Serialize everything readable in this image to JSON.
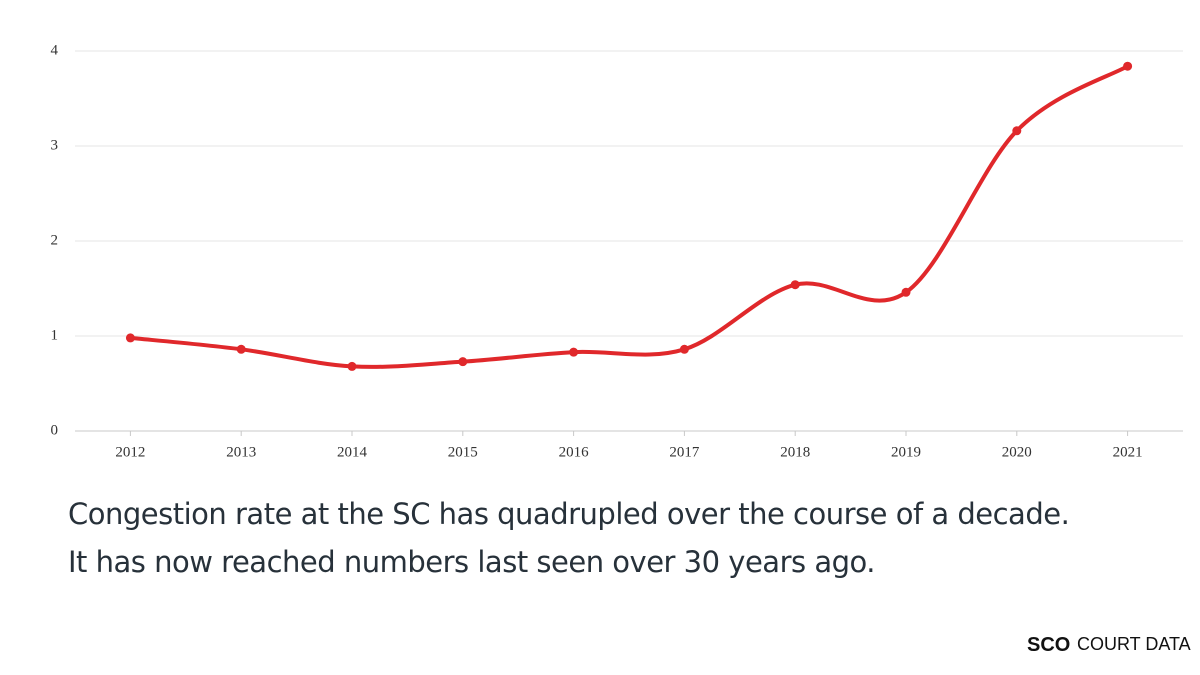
{
  "chart_data": {
    "type": "line",
    "categories": [
      "2012",
      "2013",
      "2014",
      "2015",
      "2016",
      "2017",
      "2018",
      "2019",
      "2020",
      "2021"
    ],
    "series": [
      {
        "color": "#e0282b",
        "values": [
          0.98,
          0.86,
          0.68,
          0.73,
          0.83,
          0.86,
          1.54,
          1.46,
          3.16,
          3.84
        ]
      }
    ],
    "ylim": [
      0,
      4
    ],
    "yticks": [
      0,
      1,
      2,
      3,
      4
    ],
    "grid": true,
    "smooth": true
  },
  "caption": [
    "Congestion rate at the SC has quadrupled over the course of a decade.",
    "It has now reached numbers last seen over 30 years ago."
  ],
  "brand": {
    "strong": "SCO",
    "light": "COURT DATA"
  }
}
